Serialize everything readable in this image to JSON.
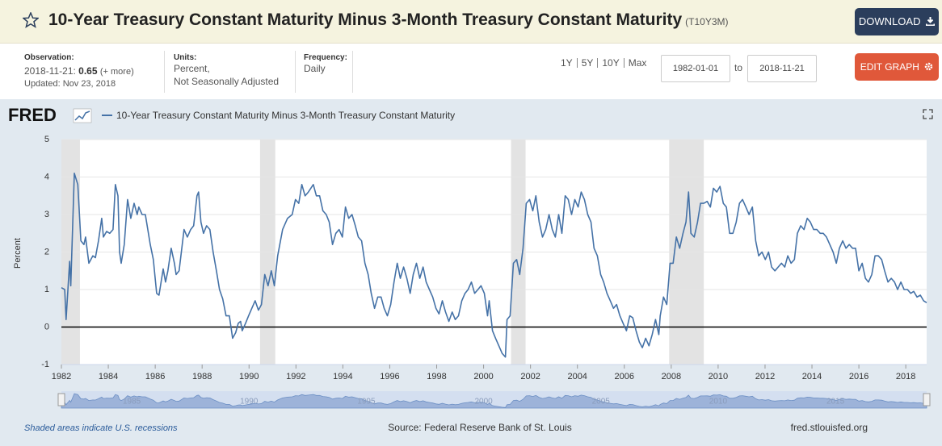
{
  "header": {
    "title": "10-Year Treasury Constant Maturity Minus 3-Month Treasury Constant Maturity",
    "series_id": "(T10Y3M)",
    "download": "DOWNLOAD"
  },
  "meta": {
    "observation_label": "Observation:",
    "observation_date": "2018-11-21:",
    "observation_value": 0.65,
    "more": "(+ more)",
    "updated": "Updated: Nov 23, 2018",
    "units_label": "Units:",
    "units_line1": "Percent,",
    "units_line2": "Not Seasonally Adjusted",
    "frequency_label": "Frequency:",
    "frequency": "Daily"
  },
  "controls": {
    "ranges": [
      "1Y",
      "5Y",
      "10Y",
      "Max"
    ],
    "start_date": "1982-01-01",
    "to": "to",
    "end_date": "2018-11-21",
    "edit_graph": "EDIT GRAPH"
  },
  "footer": {
    "recessions_note": "Shaded areas indicate U.S. recessions",
    "source": "Source: Federal Reserve Bank of St. Louis",
    "site": "fred.stlouisfed.org"
  },
  "chart_data": {
    "type": "line",
    "logo": "FRED",
    "ylabel": "Percent",
    "xlim": [
      1982.0,
      2018.89
    ],
    "xticks": [
      1982,
      1984,
      1986,
      1988,
      1990,
      1992,
      1994,
      1996,
      1998,
      2000,
      2002,
      2004,
      2006,
      2008,
      2010,
      2012,
      2014,
      2016,
      2018
    ],
    "ylim": [
      -1,
      5
    ],
    "yticks": [
      -1,
      0,
      1,
      2,
      3,
      4,
      5
    ],
    "grid": true,
    "baseline": 0,
    "navigator_xticks": [
      1985,
      1990,
      1995,
      2000,
      2005,
      2010,
      2015
    ],
    "recessions": [
      [
        1982.0,
        1982.79
      ],
      [
        1990.47,
        1991.12
      ],
      [
        2001.17,
        2001.79
      ],
      [
        2007.91,
        2009.39
      ]
    ],
    "recession_color": "#e3e3e3",
    "x": [
      1982.0,
      1982.14,
      1982.2,
      1982.35,
      1982.4,
      1982.55,
      1982.7,
      1982.83,
      1982.96,
      1983.03,
      1983.17,
      1983.34,
      1983.45,
      1983.58,
      1983.72,
      1983.79,
      1983.93,
      1984.06,
      1984.2,
      1984.3,
      1984.41,
      1984.48,
      1984.55,
      1984.68,
      1984.82,
      1984.96,
      1985.1,
      1985.23,
      1985.3,
      1985.44,
      1985.58,
      1985.79,
      1985.92,
      1986.06,
      1986.16,
      1986.34,
      1986.44,
      1986.54,
      1986.68,
      1986.82,
      1986.89,
      1987.02,
      1987.23,
      1987.37,
      1987.51,
      1987.64,
      1987.78,
      1987.85,
      1987.95,
      1988.06,
      1988.19,
      1988.33,
      1988.47,
      1988.61,
      1988.74,
      1988.88,
      1989.02,
      1989.16,
      1989.3,
      1989.43,
      1989.54,
      1989.64,
      1989.71,
      1989.85,
      1989.98,
      1990.12,
      1990.26,
      1990.4,
      1990.53,
      1990.67,
      1990.81,
      1990.95,
      1991.08,
      1991.22,
      1991.43,
      1991.64,
      1991.84,
      1991.98,
      1992.12,
      1992.25,
      1992.39,
      1992.53,
      1992.74,
      1992.87,
      1993.01,
      1993.15,
      1993.29,
      1993.42,
      1993.56,
      1993.7,
      1993.84,
      1993.98,
      1994.11,
      1994.25,
      1994.39,
      1994.53,
      1994.66,
      1994.8,
      1994.94,
      1995.08,
      1995.21,
      1995.35,
      1995.49,
      1995.63,
      1995.76,
      1995.9,
      1996.04,
      1996.18,
      1996.32,
      1996.45,
      1996.59,
      1996.73,
      1996.87,
      1997.0,
      1997.14,
      1997.28,
      1997.42,
      1997.55,
      1997.69,
      1997.83,
      1997.97,
      1998.1,
      1998.24,
      1998.38,
      1998.52,
      1998.66,
      1998.79,
      1998.93,
      1999.07,
      1999.21,
      1999.34,
      1999.48,
      1999.62,
      1999.76,
      1999.89,
      2000.03,
      2000.17,
      2000.24,
      2000.38,
      2000.51,
      2000.65,
      2000.79,
      2000.93,
      2001.0,
      2001.13,
      2001.27,
      2001.41,
      2001.54,
      2001.68,
      2001.82,
      2001.96,
      2002.1,
      2002.23,
      2002.37,
      2002.51,
      2002.65,
      2002.79,
      2002.93,
      2003.06,
      2003.2,
      2003.34,
      2003.48,
      2003.61,
      2003.75,
      2003.89,
      2004.03,
      2004.16,
      2004.3,
      2004.44,
      2004.58,
      2004.71,
      2004.85,
      2004.99,
      2005.12,
      2005.26,
      2005.4,
      2005.54,
      2005.67,
      2005.81,
      2005.95,
      2006.09,
      2006.23,
      2006.36,
      2006.5,
      2006.64,
      2006.77,
      2006.91,
      2007.05,
      2007.19,
      2007.33,
      2007.47,
      2007.53,
      2007.67,
      2007.81,
      2007.95,
      2008.08,
      2008.22,
      2008.36,
      2008.5,
      2008.63,
      2008.74,
      2008.84,
      2008.98,
      2009.12,
      2009.25,
      2009.39,
      2009.53,
      2009.67,
      2009.8,
      2009.94,
      2010.08,
      2010.22,
      2010.35,
      2010.49,
      2010.63,
      2010.77,
      2010.91,
      2011.04,
      2011.18,
      2011.32,
      2011.46,
      2011.6,
      2011.73,
      2011.87,
      2012.01,
      2012.15,
      2012.28,
      2012.42,
      2012.56,
      2012.7,
      2012.84,
      2012.97,
      2013.11,
      2013.25,
      2013.38,
      2013.52,
      2013.66,
      2013.8,
      2013.93,
      2014.07,
      2014.21,
      2014.35,
      2014.48,
      2014.62,
      2014.76,
      2014.9,
      2015.04,
      2015.17,
      2015.31,
      2015.45,
      2015.59,
      2015.73,
      2015.86,
      2016.0,
      2016.14,
      2016.28,
      2016.41,
      2016.55,
      2016.69,
      2016.83,
      2016.97,
      2017.1,
      2017.24,
      2017.38,
      2017.52,
      2017.65,
      2017.79,
      2017.93,
      2018.07,
      2018.21,
      2018.34,
      2018.48,
      2018.62,
      2018.76,
      2018.89
    ],
    "series": [
      {
        "name": "10-Year Treasury Constant Maturity Minus 3-Month Treasury Constant Maturity",
        "color": "#4572a7",
        "values": [
          1.05,
          1.0,
          0.2,
          1.75,
          1.1,
          4.1,
          3.8,
          2.3,
          2.2,
          2.4,
          1.7,
          1.9,
          1.85,
          2.3,
          2.9,
          2.4,
          2.55,
          2.5,
          2.6,
          3.8,
          3.5,
          2.0,
          1.7,
          2.2,
          3.4,
          2.9,
          3.3,
          3.0,
          3.2,
          3.0,
          3.0,
          2.2,
          1.8,
          0.9,
          0.85,
          1.55,
          1.2,
          1.5,
          2.1,
          1.7,
          1.4,
          1.5,
          2.6,
          2.4,
          2.6,
          2.7,
          3.5,
          3.6,
          2.8,
          2.5,
          2.7,
          2.6,
          2.0,
          1.5,
          1.0,
          0.75,
          0.3,
          0.3,
          -0.3,
          -0.15,
          0.1,
          0.15,
          -0.1,
          0.1,
          0.3,
          0.5,
          0.7,
          0.45,
          0.6,
          1.4,
          1.1,
          1.5,
          1.1,
          1.9,
          2.6,
          2.9,
          3.0,
          3.4,
          3.3,
          3.8,
          3.5,
          3.6,
          3.8,
          3.5,
          3.5,
          3.1,
          3.0,
          2.8,
          2.2,
          2.5,
          2.6,
          2.4,
          3.2,
          2.9,
          3.0,
          2.7,
          2.4,
          2.3,
          1.7,
          1.4,
          0.9,
          0.5,
          0.8,
          0.8,
          0.5,
          0.3,
          0.6,
          1.2,
          1.7,
          1.3,
          1.6,
          1.3,
          0.9,
          1.4,
          1.7,
          1.3,
          1.6,
          1.2,
          1.0,
          0.8,
          0.5,
          0.35,
          0.7,
          0.4,
          0.15,
          0.4,
          0.2,
          0.3,
          0.7,
          0.9,
          1.0,
          1.2,
          0.9,
          1.0,
          1.1,
          0.9,
          0.3,
          0.7,
          -0.1,
          -0.3,
          -0.5,
          -0.7,
          -0.8,
          0.2,
          0.3,
          1.7,
          1.8,
          1.4,
          2.1,
          3.3,
          3.4,
          3.1,
          3.5,
          2.8,
          2.4,
          2.6,
          3.0,
          2.6,
          2.4,
          3.0,
          2.5,
          3.5,
          3.4,
          3.0,
          3.4,
          3.2,
          3.6,
          3.4,
          3.0,
          2.8,
          2.1,
          1.9,
          1.4,
          1.2,
          0.9,
          0.7,
          0.5,
          0.6,
          0.3,
          0.1,
          -0.1,
          0.3,
          0.25,
          -0.1,
          -0.4,
          -0.55,
          -0.3,
          -0.5,
          -0.2,
          0.2,
          -0.2,
          0.3,
          0.8,
          0.6,
          1.7,
          1.7,
          2.4,
          2.1,
          2.5,
          2.8,
          3.6,
          2.5,
          2.4,
          2.8,
          3.3,
          3.3,
          3.35,
          3.2,
          3.7,
          3.6,
          3.75,
          3.3,
          3.2,
          2.5,
          2.5,
          2.8,
          3.3,
          3.4,
          3.2,
          3.0,
          3.2,
          2.3,
          1.9,
          2.0,
          1.8,
          2.0,
          1.6,
          1.5,
          1.6,
          1.7,
          1.6,
          1.9,
          1.7,
          1.8,
          2.5,
          2.7,
          2.6,
          2.9,
          2.8,
          2.6,
          2.6,
          2.5,
          2.5,
          2.4,
          2.2,
          2.0,
          1.7,
          2.1,
          2.3,
          2.1,
          2.2,
          2.1,
          2.1,
          1.5,
          1.7,
          1.3,
          1.2,
          1.4,
          1.9,
          1.9,
          1.8,
          1.5,
          1.2,
          1.3,
          1.2,
          1.0,
          1.2,
          1.0,
          1.0,
          0.9,
          0.95,
          0.8,
          0.85,
          0.7,
          0.65
        ]
      }
    ]
  }
}
